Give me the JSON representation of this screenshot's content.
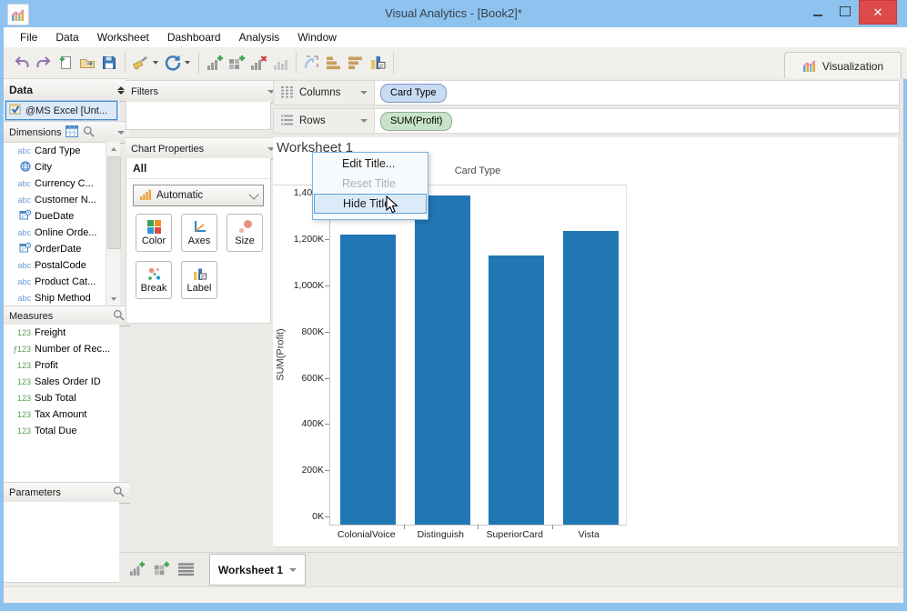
{
  "window": {
    "title": "Visual Analytics - [Book2]*"
  },
  "menu": {
    "items": [
      "File",
      "Data",
      "Worksheet",
      "Dashboard",
      "Analysis",
      "Window"
    ]
  },
  "toolbar": {
    "icons": [
      "undo",
      "redo",
      "new-workbook",
      "open",
      "save",
      "connect-to-data",
      "refresh",
      "new-worksheet",
      "new-dashboard",
      "delete-worksheet",
      "clear-worksheet",
      "swap-rows-columns",
      "sort-ascending",
      "sort-descending",
      "highlight-label"
    ],
    "visualization_label": "Visualization"
  },
  "data_panel": {
    "title": "Data",
    "source": "@MS Excel [Unt...",
    "dimensions": {
      "title": "Dimensions",
      "items": [
        {
          "icon": "abc",
          "label": "Card Type"
        },
        {
          "icon": "globe",
          "label": "City"
        },
        {
          "icon": "abc",
          "label": "Currency C..."
        },
        {
          "icon": "abc",
          "label": "Customer N..."
        },
        {
          "icon": "datetime",
          "label": "DueDate"
        },
        {
          "icon": "abc",
          "label": "Online Orde..."
        },
        {
          "icon": "datetime",
          "label": "OrderDate"
        },
        {
          "icon": "abc",
          "label": "PostalCode"
        },
        {
          "icon": "abc",
          "label": "Product Cat..."
        },
        {
          "icon": "abc",
          "label": "Ship Method"
        }
      ]
    },
    "measures": {
      "title": "Measures",
      "items": [
        {
          "icon": "123",
          "label": "Freight"
        },
        {
          "icon": "fx123",
          "label": "Number of Rec..."
        },
        {
          "icon": "123",
          "label": "Profit"
        },
        {
          "icon": "123",
          "label": "Sales Order ID"
        },
        {
          "icon": "123",
          "label": "Sub Total"
        },
        {
          "icon": "123",
          "label": "Tax Amount"
        },
        {
          "icon": "123",
          "label": "Total Due"
        }
      ]
    },
    "parameters": {
      "title": "Parameters"
    }
  },
  "filters_panel": {
    "title": "Filters"
  },
  "chart_properties": {
    "title": "Chart Properties",
    "scope": "All",
    "type_selector": "Automatic",
    "buttons": [
      {
        "icon": "color",
        "label": "Color"
      },
      {
        "icon": "axes",
        "label": "Axes"
      },
      {
        "icon": "size",
        "label": "Size"
      },
      {
        "icon": "break",
        "label": "Break"
      },
      {
        "icon": "label",
        "label": "Label"
      }
    ]
  },
  "shelves": {
    "columns_label": "Columns",
    "rows_label": "Rows",
    "columns_pills": [
      {
        "label": "Card Type",
        "type": "dimension"
      }
    ],
    "rows_pills": [
      {
        "label": "SUM(Profit)",
        "type": "measure"
      }
    ]
  },
  "worksheet": {
    "title": "Worksheet 1"
  },
  "context_menu": {
    "items": [
      {
        "label": "Edit Title...",
        "state": "normal"
      },
      {
        "label": "Reset Title",
        "state": "disabled"
      },
      {
        "label": "Hide Title",
        "state": "hover"
      }
    ]
  },
  "chart_data": {
    "type": "bar",
    "title": "Card Type",
    "xlabel": "Card Type",
    "ylabel": "SUM(Profit)",
    "categories": [
      "ColonialVoice",
      "Distinguish",
      "SuperiorCard",
      "Vista"
    ],
    "values": [
      1220000,
      1390000,
      1130000,
      1235000
    ],
    "yticks": [
      {
        "value": 0,
        "label": "0K"
      },
      {
        "value": 200000,
        "label": "200K"
      },
      {
        "value": 400000,
        "label": "400K"
      },
      {
        "value": 600000,
        "label": "600K"
      },
      {
        "value": 800000,
        "label": "800K"
      },
      {
        "value": 1000000,
        "label": "1,000K"
      },
      {
        "value": 1200000,
        "label": "1,200K"
      },
      {
        "value": 1400000,
        "label": "1,400K"
      }
    ],
    "ylim": [
      0,
      1400000
    ],
    "bar_color": "#2177b4",
    "grid": "off",
    "legend": "none"
  },
  "bottom_bar": {
    "tab_label": "Worksheet 1"
  },
  "colors": {
    "titlebar": "#8ec3ef",
    "close_button": "#dd4a4a",
    "bar": "#2177b4",
    "pill_dimension": "#c9daf3",
    "pill_measure": "#c7e3c9",
    "menu_highlight": "#dcebfa",
    "menu_highlight_border": "#5e9fd8"
  }
}
